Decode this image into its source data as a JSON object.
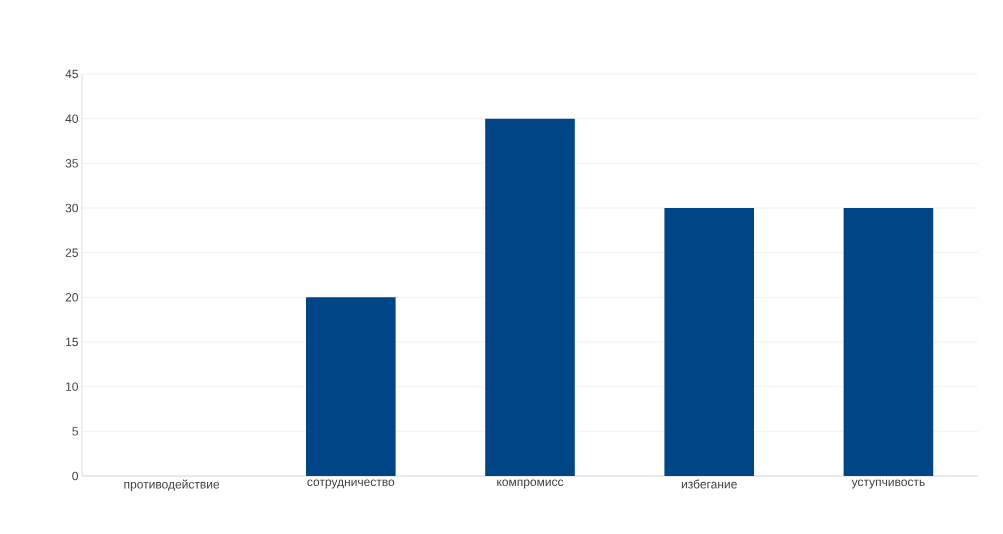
{
  "chart_data": {
    "type": "bar",
    "categories": [
      "противодействие",
      "сотрудничество",
      "компромисс",
      "избегание",
      "уступчивость"
    ],
    "values": [
      0,
      20,
      40,
      30,
      30
    ],
    "color": "#004586",
    "ylim": [
      0,
      45
    ],
    "yticks": [
      0,
      5,
      10,
      15,
      20,
      25,
      30,
      35,
      40,
      45
    ],
    "grid": "y"
  }
}
